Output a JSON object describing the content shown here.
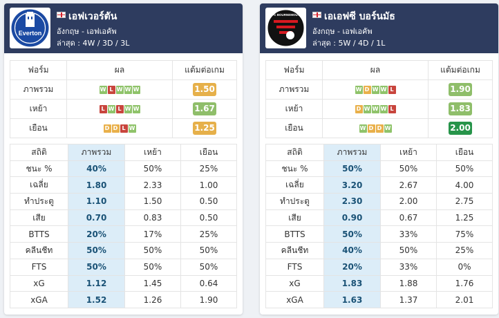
{
  "teams": [
    {
      "name": "เอฟเวอร์ตัน",
      "league": "อังกฤษ - เอฟเอคัพ",
      "recent": "ล่าสุด : 4W / 3D / 3L",
      "logo_icon": "everton-crest-icon",
      "logo_text": "Everton",
      "form_header": [
        "ฟอร์ม",
        "ผล",
        "แต้มต่อเกม"
      ],
      "form_rows": [
        {
          "label": "ภาพรวม",
          "results": [
            "W",
            "L",
            "W",
            "W",
            "W"
          ],
          "ppg": "1.50",
          "ppg_color": "#e6b04a"
        },
        {
          "label": "เหย้า",
          "results": [
            "L",
            "W",
            "L",
            "W",
            "W"
          ],
          "ppg": "1.67",
          "ppg_color": "#8fbe6a"
        },
        {
          "label": "เยือน",
          "results": [
            "D",
            "D",
            "L",
            "W"
          ],
          "ppg": "1.25",
          "ppg_color": "#e6b04a"
        }
      ],
      "stats_header": [
        "สถิติ",
        "ภาพรวม",
        "เหย้า",
        "เยือน"
      ],
      "stats_rows": [
        {
          "label": "ชนะ %",
          "overall": "40%",
          "home": "50%",
          "away": "25%"
        },
        {
          "label": "เฉลี่ย",
          "overall": "1.80",
          "home": "2.33",
          "away": "1.00"
        },
        {
          "label": "ทำประตู",
          "overall": "1.10",
          "home": "1.50",
          "away": "0.50"
        },
        {
          "label": "เสีย",
          "overall": "0.70",
          "home": "0.83",
          "away": "0.50"
        },
        {
          "label": "BTTS",
          "overall": "20%",
          "home": "17%",
          "away": "25%"
        },
        {
          "label": "คลีนชีท",
          "overall": "50%",
          "home": "50%",
          "away": "50%"
        },
        {
          "label": "FTS",
          "overall": "50%",
          "home": "50%",
          "away": "50%"
        },
        {
          "label": "xG",
          "overall": "1.12",
          "home": "1.45",
          "away": "0.64"
        },
        {
          "label": "xGA",
          "overall": "1.52",
          "home": "1.26",
          "away": "1.90"
        }
      ]
    },
    {
      "name": "เอเอฟซี บอร์นมัธ",
      "league": "อังกฤษ - เอฟเอคัพ",
      "recent": "ล่าสุด : 5W / 4D / 1L",
      "logo_icon": "bournemouth-crest-icon",
      "logo_text": "AFC BOURNEMOUTH",
      "form_header": [
        "ฟอร์ม",
        "ผล",
        "แต้มต่อเกม"
      ],
      "form_rows": [
        {
          "label": "ภาพรวม",
          "results": [
            "W",
            "D",
            "W",
            "W",
            "L"
          ],
          "ppg": "1.90",
          "ppg_color": "#8fbe6a"
        },
        {
          "label": "เหย้า",
          "results": [
            "D",
            "W",
            "W",
            "W",
            "L"
          ],
          "ppg": "1.83",
          "ppg_color": "#8fbe6a"
        },
        {
          "label": "เยือน",
          "results": [
            "W",
            "D",
            "D",
            "W"
          ],
          "ppg": "2.00",
          "ppg_color": "#27944a"
        }
      ],
      "stats_header": [
        "สถิติ",
        "ภาพรวม",
        "เหย้า",
        "เยือน"
      ],
      "stats_rows": [
        {
          "label": "ชนะ %",
          "overall": "50%",
          "home": "50%",
          "away": "50%"
        },
        {
          "label": "เฉลี่ย",
          "overall": "3.20",
          "home": "2.67",
          "away": "4.00"
        },
        {
          "label": "ทำประตู",
          "overall": "2.30",
          "home": "2.00",
          "away": "2.75"
        },
        {
          "label": "เสีย",
          "overall": "0.90",
          "home": "0.67",
          "away": "1.25"
        },
        {
          "label": "BTTS",
          "overall": "50%",
          "home": "33%",
          "away": "75%"
        },
        {
          "label": "คลีนชีท",
          "overall": "40%",
          "home": "50%",
          "away": "25%"
        },
        {
          "label": "FTS",
          "overall": "20%",
          "home": "33%",
          "away": "0%"
        },
        {
          "label": "xG",
          "overall": "1.83",
          "home": "1.88",
          "away": "1.76"
        },
        {
          "label": "xGA",
          "overall": "1.63",
          "home": "1.37",
          "away": "2.01"
        }
      ]
    }
  ]
}
